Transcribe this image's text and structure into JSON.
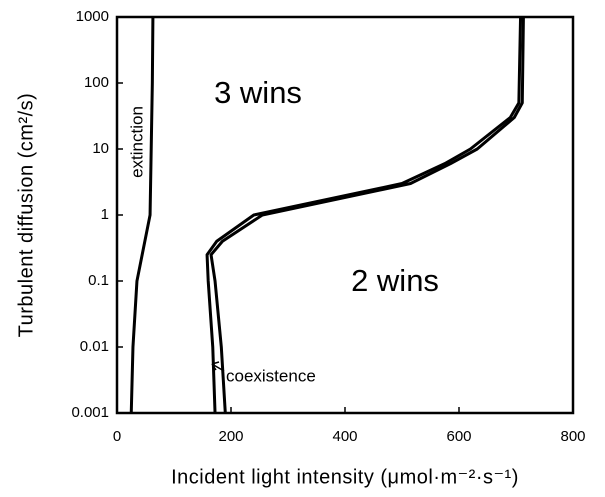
{
  "chart_data": {
    "type": "line",
    "xlabel": "Incident light intensity (μmol·m⁻²·s⁻¹)",
    "ylabel": "Turbulent diffusion (cm²/s)",
    "annotations": [
      "3 wins",
      "2 wins",
      "extinction",
      "coexistence"
    ],
    "xlim": [
      0,
      800
    ],
    "xticks": [
      0,
      200,
      400,
      600,
      800
    ],
    "ylim": [
      0.001,
      1000
    ],
    "yticks": [
      0.001,
      0.01,
      0.1,
      1,
      10,
      100,
      1000
    ],
    "ylog": true,
    "grid": false,
    "series": [
      {
        "color": "#000000",
        "x": [
          25,
          28,
          35,
          58,
          60,
          62,
          63
        ],
        "values": [
          0.001,
          0.01,
          0.1,
          1,
          10,
          100,
          1000
        ]
      },
      {
        "color": "#000000",
        "x": [
          172,
          168,
          160,
          158,
          175,
          240,
          500,
          575,
          620,
          690,
          705,
          708
        ],
        "values": [
          0.001,
          0.01,
          0.1,
          0.25,
          0.4,
          1,
          3,
          6,
          10,
          30,
          50,
          1000
        ]
      },
      {
        "color": "#000000",
        "x": [
          190,
          183,
          172,
          165,
          185,
          255,
          515,
          585,
          632,
          697,
          711,
          713
        ],
        "values": [
          0.001,
          0.01,
          0.1,
          0.25,
          0.4,
          1,
          3,
          6,
          10,
          30,
          50,
          1000
        ]
      }
    ]
  }
}
